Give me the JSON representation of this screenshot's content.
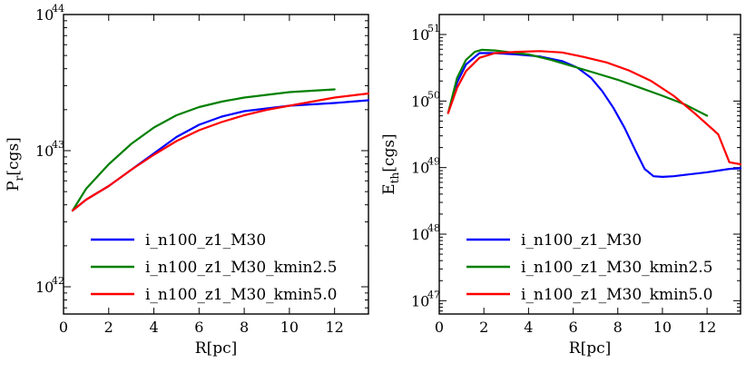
{
  "chart_data": [
    {
      "type": "line",
      "panel": "left",
      "xlabel": "R[pc]",
      "ylabel_main": "P",
      "ylabel_sub": "r",
      "ylabel_unit": "[cgs]",
      "yscale": "log",
      "xlim": [
        0,
        13.5
      ],
      "ylim_exp": [
        41.8,
        44
      ],
      "x_ticks": [
        0,
        2,
        4,
        6,
        8,
        10,
        12
      ],
      "y_ticks": [
        {
          "base": "10",
          "exp": "42",
          "value": 42
        },
        {
          "base": "10",
          "exp": "43",
          "value": 43
        },
        {
          "base": "10",
          "exp": "44",
          "value": 44
        }
      ],
      "legend_position": "lower-right",
      "series": [
        {
          "name": "i_n100_z1_M30",
          "color": "#0000ff",
          "x": [
            0.4,
            1,
            2,
            3,
            4,
            5,
            6,
            7,
            8,
            9,
            10,
            11,
            12,
            13.5
          ],
          "log_y": [
            42.56,
            42.64,
            42.74,
            42.86,
            42.98,
            43.1,
            43.19,
            43.25,
            43.29,
            43.31,
            43.33,
            43.34,
            43.35,
            43.37
          ]
        },
        {
          "name": "i_n100_z1_M30_kmin2.5",
          "color": "#008000",
          "x": [
            0.4,
            1,
            2,
            3,
            4,
            5,
            6,
            7,
            8,
            9,
            10,
            11,
            12
          ],
          "log_y": [
            42.56,
            42.72,
            42.9,
            43.05,
            43.17,
            43.26,
            43.32,
            43.36,
            43.39,
            43.41,
            43.43,
            43.44,
            43.45
          ]
        },
        {
          "name": "i_n100_z1_M30_kmin5.0",
          "color": "#ff0000",
          "x": [
            0.4,
            1,
            2,
            3,
            4,
            5,
            6,
            7,
            8,
            9,
            10,
            11,
            12,
            13.5
          ],
          "log_y": [
            42.56,
            42.64,
            42.74,
            42.86,
            42.97,
            43.07,
            43.15,
            43.21,
            43.26,
            43.3,
            43.33,
            43.36,
            43.39,
            43.42
          ]
        }
      ]
    },
    {
      "type": "line",
      "panel": "right",
      "xlabel": "R[pc]",
      "ylabel_main": "E",
      "ylabel_sub": "th",
      "ylabel_unit": "[cgs]",
      "yscale": "log",
      "xlim": [
        0,
        13.5
      ],
      "ylim_exp": [
        46.8,
        51.3
      ],
      "x_ticks": [
        0,
        2,
        4,
        6,
        8,
        10,
        12
      ],
      "y_ticks": [
        {
          "base": "10",
          "exp": "47",
          "value": 47
        },
        {
          "base": "10",
          "exp": "48",
          "value": 48
        },
        {
          "base": "10",
          "exp": "49",
          "value": 49
        },
        {
          "base": "10",
          "exp": "50",
          "value": 50
        },
        {
          "base": "10",
          "exp": "51",
          "value": 51
        }
      ],
      "legend_position": "lower-right",
      "series": [
        {
          "name": "i_n100_z1_M30",
          "color": "#0000ff",
          "x": [
            0.4,
            0.8,
            1.2,
            1.8,
            2.5,
            3.5,
            4.5,
            5.5,
            6.2,
            6.8,
            7.3,
            7.8,
            8.3,
            8.8,
            9.2,
            9.6,
            10,
            10.5,
            11,
            12,
            13,
            13.5
          ],
          "log_y": [
            49.82,
            50.28,
            50.55,
            50.72,
            50.72,
            50.7,
            50.67,
            50.6,
            50.5,
            50.35,
            50.15,
            49.9,
            49.6,
            49.25,
            48.98,
            48.87,
            48.86,
            48.87,
            48.89,
            48.93,
            48.98,
            48.99
          ]
        },
        {
          "name": "i_n100_z1_M30_kmin2.5",
          "color": "#008000",
          "x": [
            0.4,
            0.8,
            1.2,
            1.6,
            1.9,
            2.5,
            3,
            4,
            5,
            6,
            7,
            8,
            9,
            10,
            11,
            12
          ],
          "log_y": [
            49.82,
            50.35,
            50.62,
            50.74,
            50.77,
            50.76,
            50.74,
            50.7,
            50.62,
            50.52,
            50.42,
            50.32,
            50.2,
            50.08,
            49.95,
            49.78
          ]
        },
        {
          "name": "i_n100_z1_M30_kmin5.0",
          "color": "#ff0000",
          "x": [
            0.4,
            0.8,
            1.2,
            1.8,
            2.5,
            3.5,
            4.5,
            5.5,
            6.5,
            7.5,
            8.5,
            9.5,
            10.5,
            11.5,
            12.5,
            13,
            13.5
          ],
          "log_y": [
            49.82,
            50.2,
            50.45,
            50.65,
            50.72,
            50.74,
            50.75,
            50.73,
            50.66,
            50.58,
            50.46,
            50.3,
            50.08,
            49.8,
            49.5,
            49.08,
            49.05
          ]
        }
      ]
    }
  ]
}
